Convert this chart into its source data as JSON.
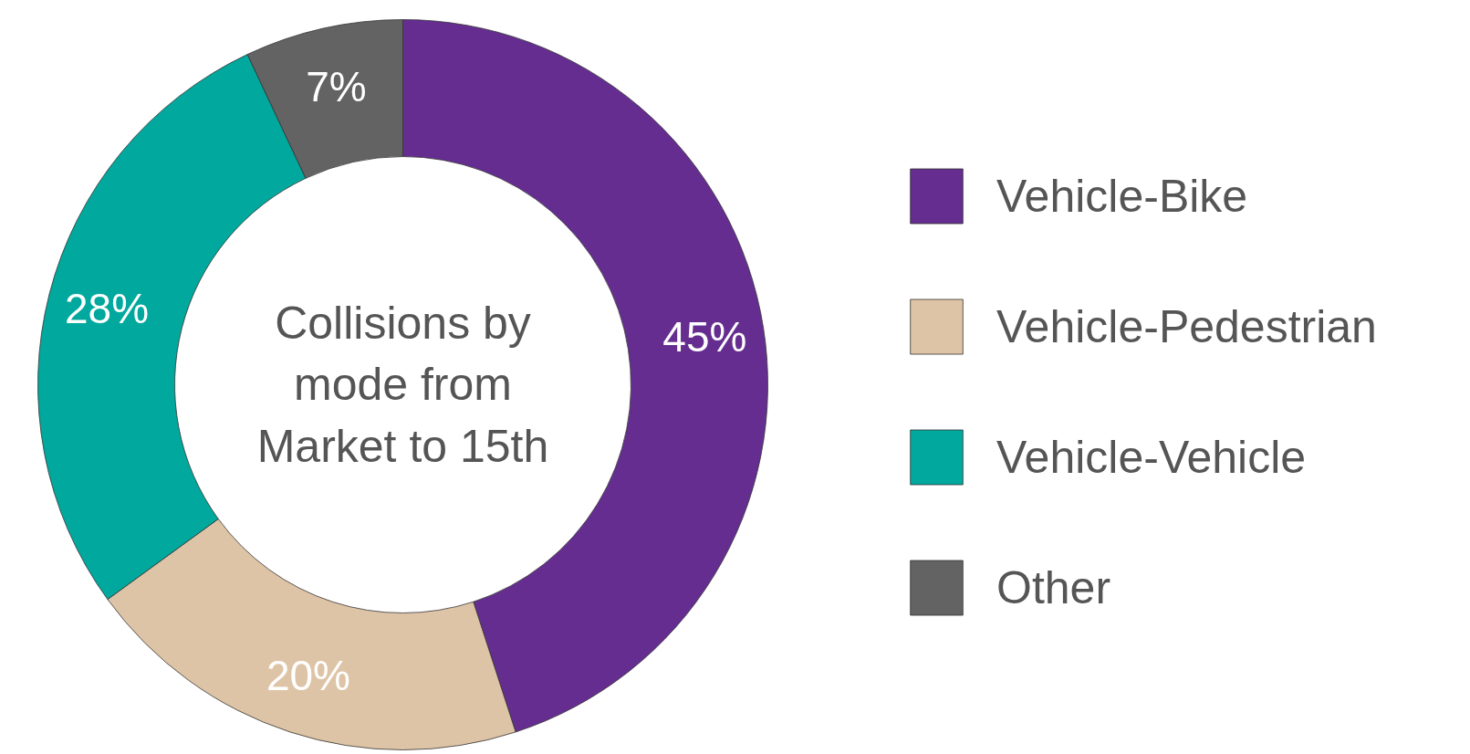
{
  "chart_data": {
    "type": "donut",
    "title": "Collisions by mode from Market to 15th",
    "categories": [
      "Vehicle-Bike",
      "Vehicle-Pedestrian",
      "Vehicle-Vehicle",
      "Other"
    ],
    "values": [
      45,
      20,
      28,
      7
    ],
    "value_labels": [
      "45%",
      "20%",
      "28%",
      "7%"
    ],
    "colors": [
      "#652d90",
      "#dec4a6",
      "#00a89d",
      "#636363"
    ],
    "legend": "right"
  }
}
